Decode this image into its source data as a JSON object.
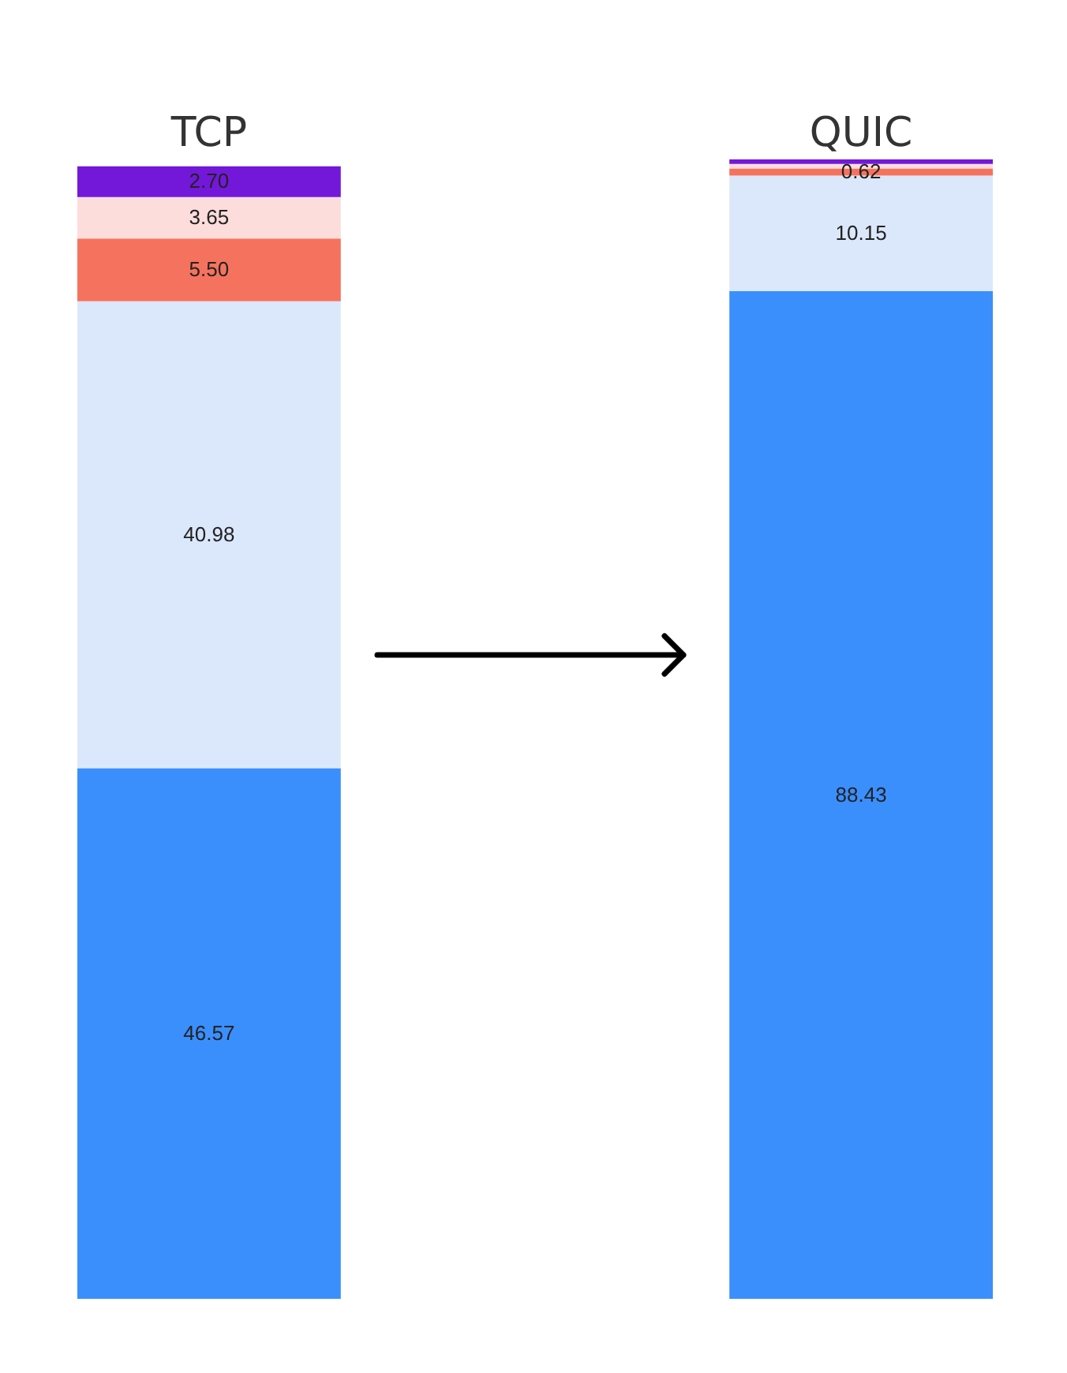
{
  "chart_data": {
    "type": "bar",
    "stacked": true,
    "categories": [
      "TCP",
      "QUIC"
    ],
    "legend": false,
    "grid": false,
    "series": [
      {
        "color": "#3a8ffd",
        "values": [
          46.57,
          88.43
        ],
        "value_labels": [
          "46.57",
          "88.43"
        ]
      },
      {
        "color": "#dbe8fb",
        "values": [
          40.98,
          10.15
        ],
        "value_labels": [
          "40.98",
          "10.15"
        ]
      },
      {
        "color": "#f5735e",
        "values": [
          5.5,
          0.62
        ],
        "value_labels": [
          "5.50",
          "0.62"
        ]
      },
      {
        "color": "#fddcdc",
        "values": [
          3.65,
          0.4
        ],
        "value_labels": [
          "3.65",
          null
        ]
      },
      {
        "color": "#7318d8",
        "values": [
          2.7,
          0.4
        ],
        "value_labels": [
          "2.70",
          null
        ]
      }
    ]
  }
}
